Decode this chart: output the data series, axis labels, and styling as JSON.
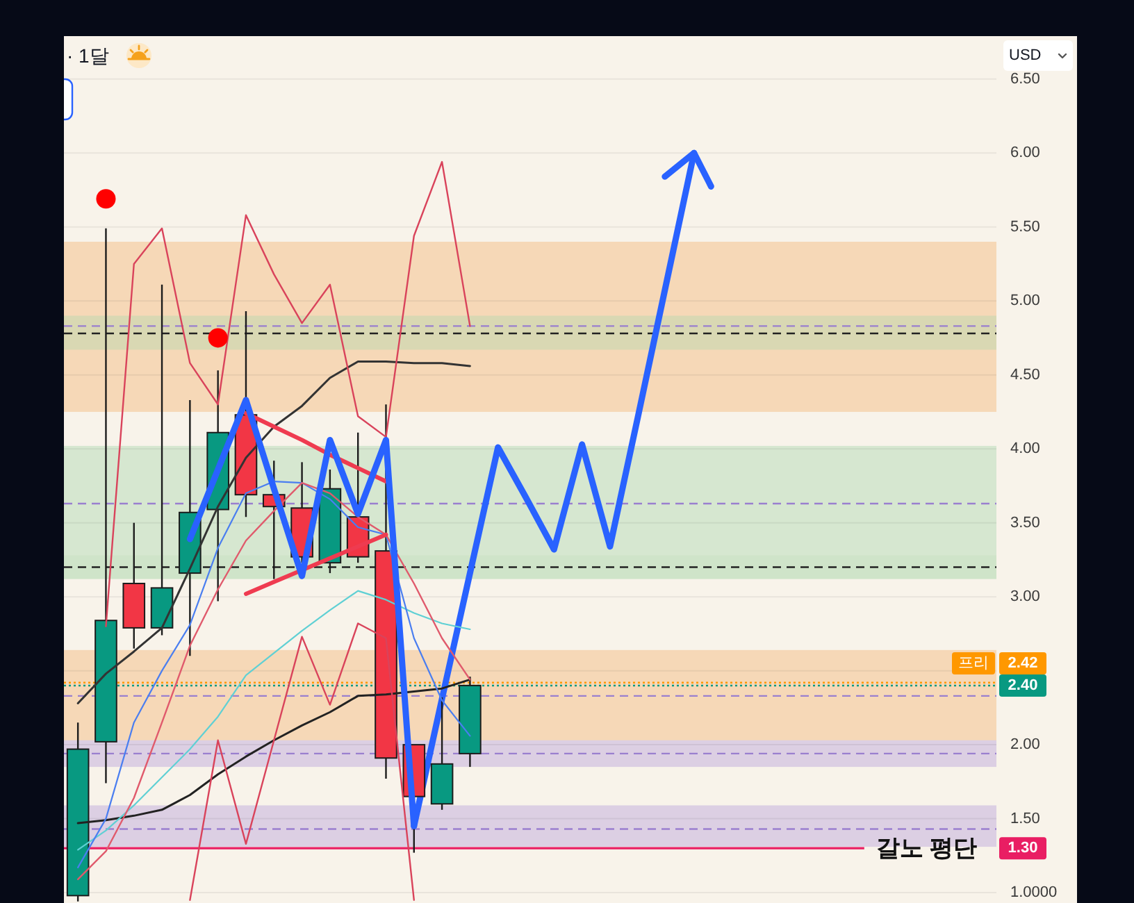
{
  "chart_data": {
    "type": "candlestick",
    "title": "· 1달",
    "ylabel": "USD",
    "categories": [
      null,
      null,
      null,
      null,
      null,
      null,
      null,
      null,
      null,
      null,
      null,
      null,
      null,
      null,
      null,
      null,
      null,
      null,
      null,
      null,
      null,
      null,
      null,
      null,
      null,
      null,
      null,
      null,
      null,
      null,
      null,
      null,
      null
    ],
    "ohlc": [
      [
        0.98,
        2.15,
        0.94,
        1.97
      ],
      [
        2.02,
        5.49,
        1.74,
        2.84
      ],
      [
        3.09,
        3.5,
        2.65,
        2.79
      ],
      [
        2.79,
        5.11,
        2.74,
        3.06
      ],
      [
        3.16,
        4.33,
        2.6,
        3.57
      ],
      [
        3.59,
        4.53,
        2.97,
        4.11
      ],
      [
        4.23,
        4.93,
        3.54,
        3.69
      ],
      [
        3.69,
        3.92,
        3.12,
        3.61
      ],
      [
        3.6,
        3.91,
        3.23,
        3.27
      ],
      [
        3.23,
        3.86,
        3.16,
        3.73
      ],
      [
        3.54,
        4.11,
        3.23,
        3.27
      ],
      [
        3.31,
        4.3,
        1.77,
        1.91
      ],
      [
        2.0,
        2.0,
        1.27,
        1.65
      ],
      [
        1.6,
        2.32,
        1.56,
        1.87
      ],
      [
        1.94,
        2.46,
        1.85,
        2.4
      ],
      null,
      null,
      null,
      null,
      null,
      null,
      null,
      null,
      null,
      null,
      null,
      null,
      null,
      null,
      null,
      null,
      null,
      null
    ],
    "colors": [
      "#089981",
      "#089981",
      "#f23645",
      "#089981",
      "#089981",
      "#089981",
      "#f23645",
      "#f23645",
      "#f23645",
      "#089981",
      "#f23645",
      "#f23645",
      "#f23645",
      "#089981",
      "#089981",
      null,
      null,
      null,
      null,
      null,
      null,
      null,
      null,
      null,
      null,
      null,
      null,
      null,
      null,
      null,
      null,
      null,
      null
    ],
    "series": [
      {
        "type": "line",
        "color": "#333333",
        "values": [
          2.28,
          2.48,
          2.63,
          2.79,
          3.19,
          3.61,
          3.94,
          4.15,
          4.29,
          4.48,
          4.59,
          4.59,
          4.58,
          4.58,
          4.56,
          null,
          null,
          null,
          null,
          null,
          null,
          null,
          null,
          null,
          null,
          null,
          null,
          null,
          null,
          null,
          null,
          null,
          null
        ]
      },
      {
        "type": "line",
        "color": "#222222",
        "values": [
          1.47,
          1.49,
          1.52,
          1.56,
          1.66,
          1.8,
          1.92,
          2.03,
          2.13,
          2.22,
          2.33,
          2.34,
          2.36,
          2.38,
          2.44,
          null,
          null,
          null,
          null,
          null,
          null,
          null,
          null,
          null,
          null,
          null,
          null,
          null,
          null,
          null,
          null,
          null,
          null
        ]
      },
      {
        "type": "line",
        "color": "#5fd0d4",
        "values": [
          1.29,
          1.42,
          1.59,
          1.78,
          1.97,
          2.19,
          2.47,
          2.62,
          2.77,
          2.91,
          3.04,
          2.98,
          2.89,
          2.82,
          2.78,
          null,
          null,
          null,
          null,
          null,
          null,
          null,
          null,
          null,
          null,
          null,
          null,
          null,
          null,
          null,
          null,
          null,
          null
        ]
      },
      {
        "type": "line",
        "color": "#4a7ef0",
        "values": [
          1.17,
          1.5,
          2.15,
          2.5,
          2.81,
          3.33,
          3.7,
          3.78,
          3.77,
          3.66,
          3.47,
          3.42,
          2.72,
          2.3,
          2.06,
          null,
          null,
          null,
          null,
          null,
          null,
          null,
          null,
          null,
          null,
          null,
          null,
          null,
          null,
          null,
          null,
          null,
          null
        ]
      },
      {
        "type": "line",
        "color": "#d9435b",
        "values": [
          null,
          2.8,
          5.25,
          5.49,
          4.58,
          4.3,
          5.58,
          5.18,
          4.85,
          5.11,
          4.22,
          4.08,
          5.44,
          5.94,
          4.83,
          null,
          null,
          null,
          null,
          null,
          null,
          null,
          null,
          null,
          null,
          null,
          null,
          null,
          null,
          null,
          null,
          null,
          null
        ]
      },
      {
        "type": "line",
        "color": "#d9435b",
        "values": [
          null,
          null,
          null,
          null,
          0.95,
          2.03,
          1.33,
          2.03,
          2.73,
          2.27,
          2.82,
          2.72,
          0.95,
          null,
          null,
          null,
          null,
          null,
          null,
          null,
          null,
          null,
          null,
          null,
          null,
          null,
          null,
          null,
          null,
          null,
          null,
          null,
          null
        ]
      },
      {
        "type": "line",
        "color": "#e05a6c",
        "values": [
          1.09,
          1.28,
          1.64,
          2.15,
          2.67,
          3.05,
          3.38,
          3.58,
          3.77,
          3.7,
          3.54,
          3.42,
          3.09,
          2.72,
          2.44,
          null,
          null,
          null,
          null,
          null,
          null,
          null,
          null,
          null,
          null,
          null,
          null,
          null,
          null,
          null,
          null,
          null,
          null
        ]
      },
      {
        "type": "line",
        "color": "#ef3b50",
        "values": [
          null,
          null,
          null,
          null,
          null,
          null,
          4.24,
          4.15,
          4.06,
          3.96,
          3.87,
          3.78,
          null,
          null,
          null,
          null,
          null,
          null,
          null,
          null,
          null,
          null,
          null,
          null,
          null,
          null,
          null,
          null,
          null,
          null,
          null,
          null,
          null
        ]
      },
      {
        "type": "line",
        "color": "#ef3b50",
        "values": [
          null,
          null,
          null,
          null,
          null,
          null,
          3.02,
          3.1,
          3.18,
          3.26,
          3.34,
          3.42,
          null,
          null,
          null,
          null,
          null,
          null,
          null,
          null,
          null,
          null,
          null,
          null,
          null,
          null,
          null,
          null,
          null,
          null,
          null,
          null,
          null
        ]
      },
      {
        "type": "line",
        "color": "#2962ff",
        "values": [
          null,
          null,
          null,
          null,
          3.39,
          3.86,
          4.33,
          3.73,
          3.14,
          4.06,
          3.56,
          4.06,
          1.45,
          null,
          null,
          null,
          null,
          null,
          null,
          null,
          null,
          null,
          null,
          null,
          null,
          null,
          null,
          null,
          null,
          null,
          null,
          null,
          null
        ]
      },
      {
        "type": "line",
        "color": "#2962ff",
        "values": [
          null,
          null,
          null,
          null,
          null,
          null,
          null,
          null,
          null,
          null,
          null,
          null,
          1.45,
          2.31,
          3.16,
          4.01,
          3.67,
          3.32,
          4.03,
          3.34,
          4.22,
          5.11,
          6.0,
          null,
          null,
          null,
          null,
          null,
          null,
          null,
          null,
          null,
          null
        ]
      },
      {
        "type": "scatter",
        "color": "#ff0000",
        "marker": "circle",
        "values": [
          null,
          5.69,
          null,
          null,
          null,
          4.75,
          null,
          null,
          null,
          null,
          null,
          null,
          null,
          null,
          null,
          null,
          null,
          null,
          null,
          null,
          null,
          null,
          null,
          null,
          null,
          null,
          null,
          null,
          null,
          null,
          null,
          null,
          null
        ]
      }
    ],
    "bands": [
      {
        "axis": "y",
        "from": 4.25,
        "to": 5.4,
        "color": "#f6d8b7"
      },
      {
        "axis": "y",
        "from": 2.01,
        "to": 2.64,
        "color": "#f6d8b7"
      },
      {
        "axis": "y",
        "from": 3.24,
        "to": 4.02,
        "color": "#d6e7d0"
      },
      {
        "axis": "y",
        "from": 4.67,
        "to": 4.9,
        "color": "#d9d8b3"
      },
      {
        "axis": "y",
        "from": 3.12,
        "to": 3.28,
        "color": "#cfe4c9"
      },
      {
        "axis": "y",
        "from": 1.85,
        "to": 2.03,
        "color": "#dccfe3"
      },
      {
        "axis": "y",
        "from": 1.31,
        "to": 1.59,
        "color": "#dccfe3"
      }
    ],
    "ref_lines": [
      {
        "axis": "y",
        "value": 4.83,
        "color": "#9a7fcf",
        "line_style": "dashed"
      },
      {
        "axis": "y",
        "value": 4.78,
        "color": "#222222",
        "line_style": "dashed"
      },
      {
        "axis": "y",
        "value": 3.63,
        "color": "#9a7fcf",
        "line_style": "dashed"
      },
      {
        "axis": "y",
        "value": 3.2,
        "color": "#222222",
        "line_style": "dashed"
      },
      {
        "axis": "y",
        "value": 2.33,
        "color": "#9a7fcf",
        "line_style": "dashed"
      },
      {
        "axis": "y",
        "value": 1.94,
        "color": "#9a7fcf",
        "line_style": "dashed"
      },
      {
        "axis": "y",
        "value": 1.43,
        "color": "#9a7fcf",
        "line_style": "dashed"
      },
      {
        "axis": "y",
        "value": 2.42,
        "label": "프리 2.42",
        "color": "#ff9800",
        "line_style": "dotted"
      },
      {
        "axis": "y",
        "value": 2.4,
        "label": "2.40",
        "color": "#089981",
        "line_style": "dotted"
      },
      {
        "axis": "y",
        "value": 1.3,
        "label": "갈노 평단",
        "color": "#e91e63",
        "line_style": "solid"
      }
    ],
    "annotations": [
      {
        "text": "1.30",
        "y": 1.3
      }
    ],
    "ylim": [
      0.93,
      6.79
    ],
    "yticks": [
      {
        "value": 6.5,
        "label": "6.50"
      },
      {
        "value": 6,
        "label": "6.00"
      },
      {
        "value": 5.5,
        "label": "5.50"
      },
      {
        "value": 5,
        "label": "5.00"
      },
      {
        "value": 4.5,
        "label": "4.50"
      },
      {
        "value": 4,
        "label": "4.00"
      },
      {
        "value": 3.5,
        "label": "3.50"
      },
      {
        "value": 3,
        "label": "3.00"
      },
      {
        "value": 2.5,
        "label": null
      },
      {
        "value": 2,
        "label": "2.00"
      },
      {
        "value": 1.5,
        "label": "1.50"
      },
      {
        "value": 1,
        "label": "1.0000"
      }
    ],
    "grid": "y",
    "tick_labels": "y"
  }
}
